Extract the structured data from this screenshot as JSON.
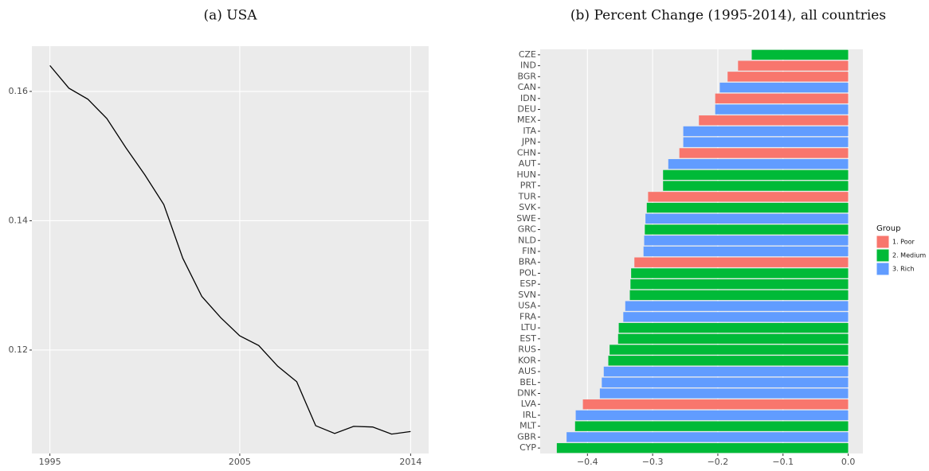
{
  "chart_data": [
    {
      "type": "line",
      "title": "(a) USA",
      "x": [
        1995,
        1996,
        1997,
        1998,
        1999,
        2000,
        2001,
        2002,
        2003,
        2004,
        2005,
        2006,
        2007,
        2008,
        2009,
        2010,
        2011,
        2012,
        2013,
        2014
      ],
      "values": [
        0.164,
        0.1605,
        0.1588,
        0.1558,
        0.1513,
        0.1471,
        0.1425,
        0.1342,
        0.1283,
        0.125,
        0.1222,
        0.1207,
        0.1175,
        0.1151,
        0.1083,
        0.1071,
        0.1082,
        0.1081,
        0.107,
        0.1074
      ],
      "color": "#000000",
      "xlim": [
        1994.05,
        2014.95
      ],
      "xticks": [
        1995,
        2005,
        2014
      ],
      "ylim": [
        0.104,
        0.167
      ],
      "yticks": [
        0.12,
        0.14,
        0.16
      ],
      "grid": true
    },
    {
      "type": "hbar",
      "title": "(b) Percent Change (1995-2014), all countries",
      "categories": [
        "CZE",
        "IND",
        "BGR",
        "CAN",
        "IDN",
        "DEU",
        "MEX",
        "ITA",
        "JPN",
        "CHN",
        "AUT",
        "HUN",
        "PRT",
        "TUR",
        "SVK",
        "SWE",
        "GRC",
        "NLD",
        "FIN",
        "BRA",
        "POL",
        "ESP",
        "SVN",
        "USA",
        "FRA",
        "LTU",
        "EST",
        "RUS",
        "KOR",
        "AUS",
        "BEL",
        "DNK",
        "LVA",
        "IRL",
        "MLT",
        "GBR",
        "CYP"
      ],
      "series": [
        {
          "name": "1. Poor",
          "color": "#F8766D",
          "values": [
            null,
            -0.169,
            -0.185,
            null,
            -0.204,
            null,
            -0.229,
            null,
            null,
            -0.259,
            null,
            null,
            null,
            -0.307,
            null,
            null,
            null,
            null,
            null,
            -0.328,
            null,
            null,
            null,
            null,
            null,
            null,
            null,
            null,
            null,
            null,
            null,
            null,
            -0.407,
            null,
            null,
            null,
            null
          ]
        },
        {
          "name": "2. Medium",
          "color": "#00BA38",
          "values": [
            -0.148,
            null,
            null,
            null,
            null,
            null,
            null,
            null,
            null,
            null,
            null,
            -0.284,
            -0.284,
            null,
            -0.309,
            null,
            -0.312,
            null,
            null,
            null,
            -0.333,
            -0.334,
            -0.335,
            null,
            null,
            -0.352,
            -0.353,
            -0.366,
            -0.368,
            null,
            null,
            null,
            null,
            null,
            -0.419,
            null,
            -0.447
          ]
        },
        {
          "name": "3. Rich",
          "color": "#619CFF",
          "values": [
            null,
            null,
            null,
            -0.197,
            null,
            -0.204,
            null,
            -0.253,
            -0.253,
            null,
            -0.276,
            null,
            null,
            null,
            null,
            -0.311,
            null,
            -0.313,
            -0.314,
            null,
            null,
            null,
            null,
            -0.342,
            -0.345,
            null,
            null,
            null,
            null,
            -0.375,
            -0.378,
            -0.381,
            null,
            -0.418,
            null,
            -0.432,
            null
          ]
        }
      ],
      "xlim": [
        -0.4725,
        0.0225
      ],
      "xticks": [
        {
          "value": -0.4,
          "label": "−0.4"
        },
        {
          "value": -0.3,
          "label": "−0.3"
        },
        {
          "value": -0.2,
          "label": "−0.2"
        },
        {
          "value": -0.1,
          "label": "−0.1"
        },
        {
          "value": 0,
          "label": "0.0"
        }
      ],
      "legend_title": "Group",
      "legend_position": "right",
      "grid": true
    }
  ]
}
